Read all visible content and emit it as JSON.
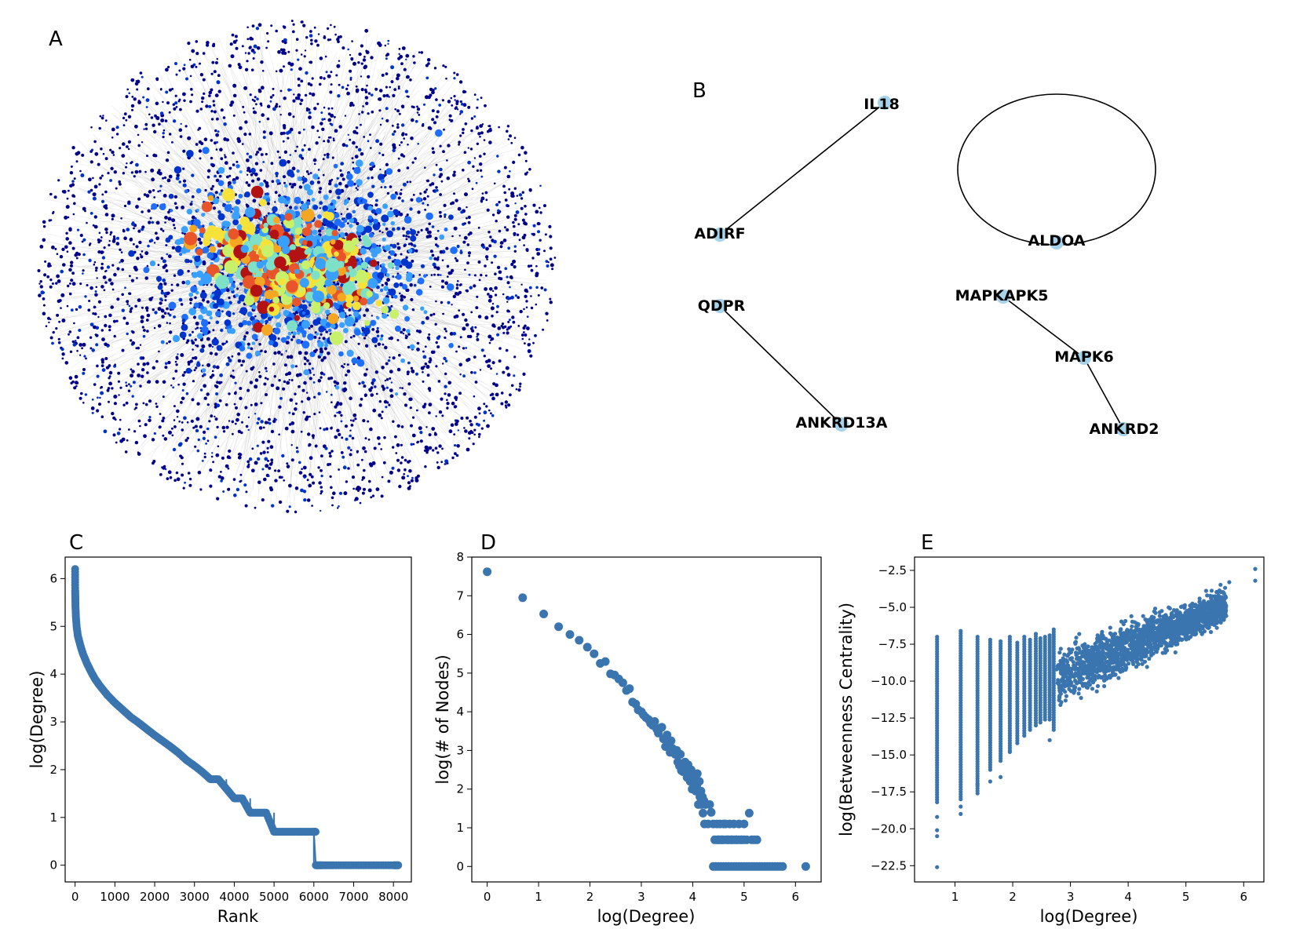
{
  "panels": {
    "A": "A",
    "B": "B",
    "C": "C",
    "D": "D",
    "E": "E"
  },
  "network_colormap": [
    "#00008b",
    "#0033cc",
    "#1f6fff",
    "#3aa0ff",
    "#7fe0c8",
    "#c8f06a",
    "#f7e23a",
    "#f5a623",
    "#e8552a",
    "#b31212"
  ],
  "subnetwork": {
    "nodes": [
      "IL18",
      "ADIRF",
      "ALDOA",
      "QDPR",
      "MAPKAPK5",
      "MAPK6",
      "ANKRD13A",
      "ANKRD2"
    ],
    "edges": [
      [
        "IL18",
        "ADIRF"
      ],
      [
        "QDPR",
        "ANKRD13A"
      ],
      [
        "MAPKAPK5",
        "MAPK6"
      ],
      [
        "MAPK6",
        "ANKRD2"
      ],
      [
        "ALDOA",
        "ALDOA"
      ]
    ],
    "node_color": "#a6d3ea"
  },
  "marker_color": "#3b75af",
  "chart_data": [
    {
      "panel": "C",
      "type": "line",
      "xlabel": "Rank",
      "ylabel": "log(Degree)",
      "xlim": [
        -250,
        8450
      ],
      "ylim": [
        -0.35,
        6.45
      ],
      "xticks": [
        "0",
        "1000",
        "2000",
        "3000",
        "4000",
        "5000",
        "6000",
        "7000",
        "8000"
      ],
      "yticks": [
        "0",
        "1",
        "2",
        "3",
        "4",
        "5",
        "6"
      ],
      "x": [
        0,
        2,
        5,
        10,
        20,
        40,
        70,
        100,
        150,
        200,
        300,
        400,
        500,
        600,
        800,
        1000,
        1200,
        1400,
        1600,
        1800,
        2000,
        2200,
        2400,
        2600,
        2800,
        3000,
        3200,
        3400,
        3600,
        3800,
        4000,
        4200,
        4400,
        4600,
        4800,
        5000,
        5200,
        5400,
        5600,
        5800,
        6000,
        6050,
        6200,
        6500,
        7000,
        7500,
        8000,
        8120
      ],
      "y": [
        6.2,
        5.75,
        5.6,
        5.4,
        5.2,
        4.98,
        4.8,
        4.7,
        4.55,
        4.42,
        4.22,
        4.05,
        3.9,
        3.78,
        3.57,
        3.4,
        3.25,
        3.1,
        2.98,
        2.85,
        2.72,
        2.6,
        2.48,
        2.35,
        2.2,
        2.08,
        1.95,
        1.8,
        1.8,
        1.6,
        1.4,
        1.4,
        1.1,
        1.1,
        1.1,
        0.7,
        0.7,
        0.7,
        0.7,
        0.7,
        0.7,
        0.0,
        0.0,
        0.0,
        0.0,
        0.0,
        0.0,
        0.0
      ]
    },
    {
      "panel": "D",
      "type": "scatter",
      "xlabel": "log(Degree)",
      "ylabel": "log(# of Nodes)",
      "xlim": [
        -0.3,
        6.5
      ],
      "ylim": [
        -0.4,
        8.0
      ],
      "xticks": [
        "0",
        "1",
        "2",
        "3",
        "4",
        "5",
        "6"
      ],
      "yticks": [
        "0",
        "1",
        "2",
        "3",
        "4",
        "5",
        "6",
        "7",
        "8"
      ],
      "x": [
        0,
        0.69,
        1.1,
        1.39,
        1.61,
        1.79,
        1.95,
        2.08,
        2.2,
        2.3,
        2.4,
        2.48,
        2.56,
        2.64,
        2.71,
        2.77,
        2.83,
        2.89,
        2.94,
        3.0,
        3.04,
        3.09,
        3.14,
        3.18,
        3.22,
        3.26,
        3.3,
        3.33,
        3.37,
        3.4,
        3.43,
        3.47,
        3.5,
        3.53,
        3.56,
        3.58,
        3.61,
        3.64,
        3.66,
        3.69,
        3.71,
        3.74,
        3.76,
        3.78,
        3.81,
        3.83,
        3.85,
        3.87,
        3.89,
        3.91,
        3.93,
        3.95,
        3.97,
        3.99,
        4.01,
        4.03,
        4.04,
        4.06,
        4.08,
        4.09,
        4.11,
        4.13,
        4.14,
        4.16,
        4.17,
        4.19,
        4.2,
        4.22,
        4.23,
        4.25,
        4.3,
        4.33,
        4.36,
        4.4,
        4.43,
        4.47,
        4.5,
        4.53,
        4.57,
        4.6,
        4.64,
        4.68,
        4.72,
        4.76,
        4.8,
        4.85,
        4.9,
        4.95,
        5.0,
        5.05,
        5.1,
        5.15,
        5.2,
        5.25,
        4.4,
        4.45,
        4.5,
        4.55,
        4.6,
        4.65,
        4.7,
        4.75,
        4.8,
        4.85,
        4.9,
        4.95,
        5.0,
        5.05,
        5.1,
        5.15,
        5.2,
        5.25,
        5.3,
        5.35,
        5.4,
        5.45,
        5.5,
        5.55,
        5.6,
        5.65,
        5.7,
        5.75,
        4.48,
        4.52,
        4.56,
        4.6,
        4.65,
        4.7,
        4.75,
        4.8,
        4.85,
        4.9,
        4.95,
        5.0,
        6.2
      ],
      "y": [
        7.62,
        6.95,
        6.53,
        6.2,
        6.0,
        5.85,
        5.67,
        5.5,
        5.25,
        5.3,
        4.98,
        4.95,
        4.85,
        4.75,
        4.55,
        4.6,
        4.25,
        4.2,
        4.05,
        4.0,
        3.92,
        3.85,
        3.8,
        3.7,
        3.65,
        3.75,
        3.55,
        3.45,
        3.58,
        3.6,
        3.3,
        3.1,
        3.4,
        3.2,
        2.95,
        3.25,
        3.05,
        2.95,
        2.9,
        3.0,
        2.7,
        2.6,
        2.9,
        2.48,
        2.45,
        2.45,
        2.7,
        2.5,
        2.3,
        2.63,
        2.4,
        2.2,
        2.5,
        2.0,
        2.4,
        2.2,
        2.3,
        1.95,
        2.1,
        2.4,
        1.6,
        2.2,
        1.8,
        1.95,
        1.6,
        1.8,
        1.38,
        1.7,
        1.1,
        1.6,
        1.1,
        1.6,
        1.4,
        1.1,
        0.69,
        1.1,
        0.69,
        1.1,
        0.69,
        1.1,
        1.1,
        0.69,
        1.1,
        0.69,
        1.1,
        0.69,
        1.1,
        0.69,
        1.1,
        0.69,
        1.38,
        0.69,
        0.69,
        0.69,
        0,
        0,
        0,
        0,
        0,
        0,
        0,
        0,
        0,
        0,
        0,
        0,
        0,
        0,
        0,
        0,
        0,
        0,
        0,
        0,
        0,
        0,
        0,
        0,
        0,
        0,
        0,
        0,
        0.69,
        0.69,
        0.69,
        0.69,
        0.69,
        0.69,
        0.69,
        0.69,
        0.69,
        0.69,
        0.69,
        0.69,
        0
      ]
    },
    {
      "panel": "E",
      "type": "scatter",
      "xlabel": "log(Degree)",
      "ylabel": "log(Betweenness Centrality)",
      "xlim": [
        0.3,
        6.35
      ],
      "ylim": [
        -23.6,
        -1.6
      ],
      "xticks": [
        "1",
        "2",
        "3",
        "4",
        "5",
        "6"
      ],
      "yticks": [
        "−2.5",
        "−5.0",
        "−7.5",
        "−10.0",
        "−12.5",
        "−15.0",
        "−17.5",
        "−20.0",
        "−22.5"
      ],
      "columns": [
        {
          "x": 0.69,
          "ymin": -18.2,
          "ymax": -7.0
        },
        {
          "x": 1.1,
          "ymin": -18.0,
          "ymax": -6.6
        },
        {
          "x": 1.39,
          "ymin": -17.6,
          "ymax": -7.0
        },
        {
          "x": 1.61,
          "ymin": -16.0,
          "ymax": -7.2
        },
        {
          "x": 1.79,
          "ymin": -15.4,
          "ymax": -7.3
        },
        {
          "x": 1.95,
          "ymin": -14.7,
          "ymax": -7.0
        },
        {
          "x": 2.08,
          "ymin": -14.2,
          "ymax": -7.4
        },
        {
          "x": 2.2,
          "ymin": -13.7,
          "ymax": -7.0
        },
        {
          "x": 2.3,
          "ymin": -13.3,
          "ymax": -7.2
        },
        {
          "x": 2.4,
          "ymin": -13.0,
          "ymax": -6.8
        },
        {
          "x": 2.48,
          "ymin": -12.8,
          "ymax": -7.1
        },
        {
          "x": 2.56,
          "ymin": -12.6,
          "ymax": -7.0
        },
        {
          "x": 2.64,
          "ymin": -12.6,
          "ymax": -6.9
        },
        {
          "x": 2.71,
          "ymin": -13.3,
          "ymax": -6.5
        }
      ],
      "cloud": {
        "x_from": 2.75,
        "x_to": 5.7,
        "low_start": -12.5,
        "low_end": -6.5,
        "high_start": -7.0,
        "high_end": -3.2
      },
      "outliers": [
        [
          0.69,
          -19.2
        ],
        [
          0.69,
          -20.1
        ],
        [
          0.69,
          -20.5
        ],
        [
          0.69,
          -22.6
        ],
        [
          1.1,
          -18.5
        ],
        [
          1.1,
          -19.0
        ],
        [
          1.39,
          -17.0
        ],
        [
          1.61,
          -16.8
        ],
        [
          1.79,
          -16.5
        ],
        [
          1.95,
          -14.8
        ],
        [
          2.64,
          -14.0
        ],
        [
          6.2,
          -2.4
        ],
        [
          6.2,
          -3.2
        ],
        [
          5.75,
          -3.3
        ]
      ]
    }
  ]
}
